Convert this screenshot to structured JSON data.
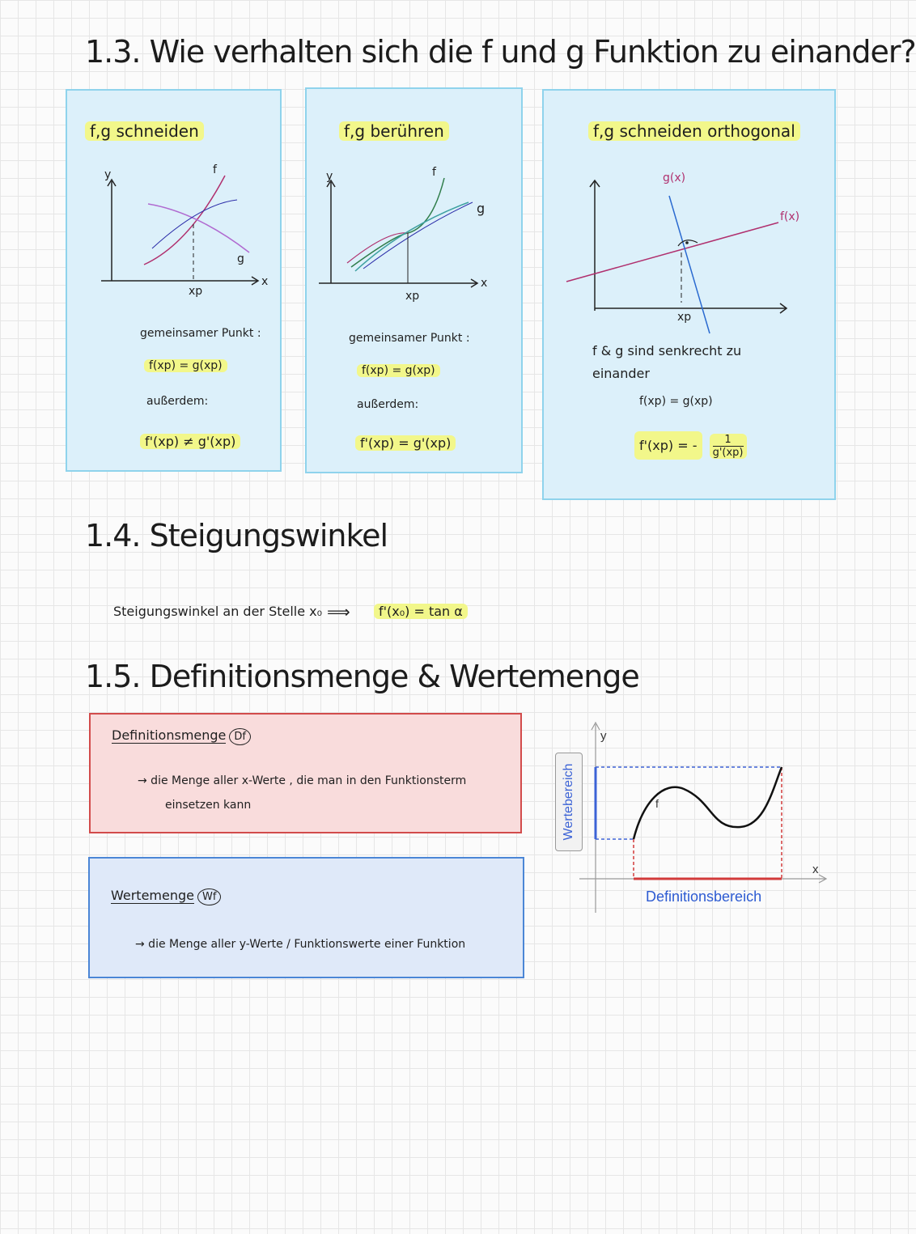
{
  "section13": {
    "title": "1.3. Wie verhalten sich die f und g Funktion zu einander?",
    "card1": {
      "heading": "f,g schneiden",
      "axis_y": "y",
      "axis_x": "x",
      "label_f": "f",
      "label_g": "g",
      "xp": "xp",
      "line1": "gemeinsamer Punkt :",
      "line2": "f(xp) = g(xp)",
      "line3": "außerdem:",
      "line4": "f'(xp) ≠ g'(xp)"
    },
    "card2": {
      "heading": "f,g berühren",
      "axis_y": "y",
      "axis_x": "x",
      "label_f": "f",
      "label_g": "g",
      "xp": "xp",
      "line1": "gemeinsamer Punkt :",
      "line2": "f(xp) = g(xp)",
      "line3": "außerdem:",
      "line4": "f'(xp) = g'(xp)"
    },
    "card3": {
      "heading": "f,g schneiden orthogonal",
      "label_g": "g(x)",
      "label_f": "f(x)",
      "xp": "xp",
      "line1": "f & g sind senkrecht zu",
      "line1b": "einander",
      "line2": "f(xp) = g(xp)",
      "line3_lhs": "f'(xp) = -",
      "line3_num": "1",
      "line3_den": "g'(xp)"
    }
  },
  "section14": {
    "title": "1.4. Steigungswinkel",
    "text": "Steigungswinkel an der Stelle x₀",
    "arrow": "⟹",
    "formula": "f'(x₀) = tan α"
  },
  "section15": {
    "title": "1.5. Definitionsmenge & Wertemenge",
    "def_heading": "Definitionsmenge",
    "def_symbol": "Df",
    "def_text1": "→ die Menge aller x-Werte , die man in den Funktionsterm",
    "def_text2": "einsetzen kann",
    "wert_heading": "Wertemenge",
    "wert_symbol": "Wf",
    "wert_text": "→ die Menge aller y-Werte / Funktionswerte einer Funktion",
    "graph": {
      "y_label": "y",
      "x_label": "x",
      "f_label": "f",
      "range_label": "Wertebereich",
      "domain_label": "Definitionsbereich"
    }
  },
  "colors": {
    "card_fill": "#dcf0fa",
    "card_border": "#8fd3ec",
    "highlight": "#f2f78a",
    "red": "#d24b4b",
    "blue": "#4b86d6"
  }
}
